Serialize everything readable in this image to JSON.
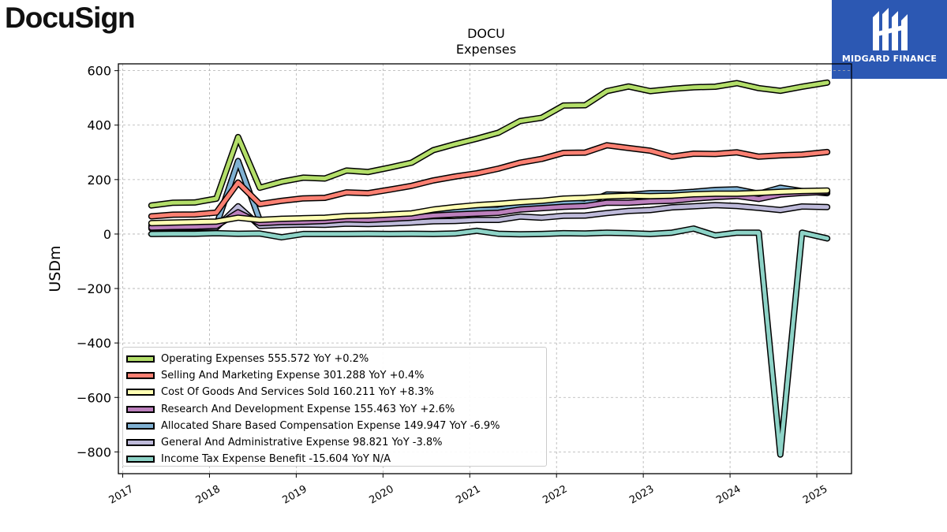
{
  "brand": {
    "logo_text": "DocuSign",
    "badge_text": "MIDGARD FINANCE",
    "badge_color": "#2c58b3"
  },
  "chart_data": {
    "type": "line",
    "title": "DOCU",
    "subtitle": "Expenses",
    "ylabel": "USDm",
    "xlabel": "",
    "ylim": [
      -880,
      625
    ],
    "xlim": [
      2016.95,
      2025.4
    ],
    "yticks": [
      600,
      400,
      200,
      0,
      -200,
      -400,
      -600,
      -800
    ],
    "ytick_labels": [
      "600",
      "400",
      "200",
      "0",
      "−200",
      "−400",
      "−600",
      "−800"
    ],
    "xticks": [
      2017,
      2018,
      2019,
      2020,
      2021,
      2022,
      2023,
      2024,
      2025
    ],
    "xtick_labels": [
      "2017",
      "2018",
      "2019",
      "2020",
      "2021",
      "2022",
      "2023",
      "2024",
      "2025"
    ],
    "grid": true,
    "legend_position": "lower-left",
    "x": [
      2017.33,
      2017.58,
      2017.83,
      2018.08,
      2018.33,
      2018.58,
      2018.83,
      2019.08,
      2019.33,
      2019.58,
      2019.83,
      2020.08,
      2020.33,
      2020.58,
      2020.83,
      2021.08,
      2021.33,
      2021.58,
      2021.83,
      2022.08,
      2022.33,
      2022.58,
      2022.83,
      2023.08,
      2023.33,
      2023.58,
      2023.83,
      2024.08,
      2024.33,
      2024.58,
      2024.83,
      2025.12
    ],
    "series": [
      {
        "name": "Operating Expenses",
        "legend": "Operating Expenses  555.572 YoY +0.2%",
        "color": "#b3de69",
        "values": [
          105,
          115,
          116,
          130,
          356,
          170,
          192,
          207,
          204,
          233,
          228,
          244,
          262,
          308,
          330,
          350,
          372,
          415,
          427,
          472,
          473,
          525,
          542,
          525,
          533,
          539,
          541,
          554,
          536,
          526,
          541,
          556
        ]
      },
      {
        "name": "Selling And Marketing Expense",
        "legend": "Selling And Marketing Expense  301.288 YoY +0.4%",
        "color": "#fb8072",
        "values": [
          65,
          71,
          72,
          79,
          189,
          110,
          122,
          131,
          133,
          153,
          150,
          163,
          177,
          197,
          211,
          223,
          240,
          262,
          276,
          298,
          299,
          326,
          316,
          306,
          284,
          295,
          294,
          300,
          284,
          289,
          292,
          301
        ]
      },
      {
        "name": "Cost Of Goods And Services Sold",
        "legend": "Cost Of Goods And Services Sold  160.211 YoY +8.3%",
        "color": "#ffffb3",
        "values": [
          40,
          42,
          44,
          46,
          60,
          52,
          56,
          58,
          60,
          66,
          68,
          72,
          76,
          90,
          99,
          106,
          111,
          117,
          122,
          130,
          133,
          138,
          141,
          139,
          141,
          146,
          148,
          148,
          151,
          155,
          158,
          160
        ]
      },
      {
        "name": "Research And Development Expense",
        "legend": "Research And Development Expense  155.463 YoY +2.6%",
        "color": "#bc80bd",
        "values": [
          24,
          26,
          27,
          30,
          80,
          40,
          44,
          45,
          48,
          54,
          52,
          56,
          60,
          68,
          72,
          75,
          78,
          90,
          95,
          100,
          103,
          115,
          115,
          120,
          122,
          130,
          136,
          140,
          129,
          145,
          151,
          155
        ]
      },
      {
        "name": "Allocated Share Based Compensation Expense",
        "legend": "Allocated Share Based Compensation Expense  149.947 YoY -6.9%",
        "color": "#80b1d3",
        "values": [
          30,
          30,
          31,
          32,
          268,
          50,
          55,
          52,
          58,
          60,
          61,
          62,
          63,
          75,
          85,
          88,
          90,
          102,
          111,
          118,
          112,
          145,
          144,
          150,
          150,
          155,
          162,
          164,
          148,
          170,
          158,
          150
        ]
      },
      {
        "name": "General And Administrative Expense",
        "legend": "General And Administrative Expense  98.821 YoY -3.8%",
        "color": "#bebada",
        "values": [
          20,
          23,
          24,
          24,
          102,
          30,
          33,
          35,
          34,
          38,
          37,
          39,
          42,
          47,
          48,
          52,
          52,
          64,
          60,
          67,
          68,
          77,
          85,
          88,
          98,
          102,
          106,
          103,
          96,
          88,
          101,
          99
        ]
      },
      {
        "name": "Income Tax Expense Benefit",
        "legend": "Income Tax Expense Benefit  -15.604 YoY N/A",
        "color": "#8dd3c7",
        "values": [
          0,
          1,
          1,
          3,
          1,
          2,
          -12,
          0,
          0,
          0,
          1,
          0,
          1,
          0,
          2,
          12,
          1,
          -1,
          0,
          3,
          2,
          5,
          3,
          0,
          5,
          20,
          -5,
          5,
          5,
          -810,
          5,
          -16
        ]
      }
    ]
  }
}
